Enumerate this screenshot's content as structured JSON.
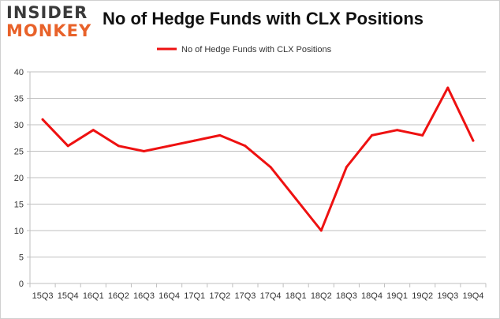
{
  "logo": {
    "line1": "INSIDER",
    "line2": "MONKEY"
  },
  "chart_data": {
    "type": "line",
    "title": "No of Hedge Funds with CLX Positions",
    "xlabel": "",
    "ylabel": "",
    "categories": [
      "15Q3",
      "15Q4",
      "16Q1",
      "16Q2",
      "16Q3",
      "16Q4",
      "17Q1",
      "17Q2",
      "17Q3",
      "17Q4",
      "18Q1",
      "18Q2",
      "18Q3",
      "18Q4",
      "19Q1",
      "19Q2",
      "19Q3",
      "19Q4"
    ],
    "series": [
      {
        "name": "No of Hedge Funds with CLX Positions",
        "values": [
          31,
          26,
          29,
          26,
          25,
          26,
          27,
          28,
          26,
          22,
          16,
          10,
          22,
          28,
          29,
          28,
          37,
          27
        ],
        "color": "#ee1111"
      }
    ],
    "ylim": [
      0,
      40
    ],
    "yticks": [
      0,
      5,
      10,
      15,
      20,
      25,
      30,
      35,
      40
    ],
    "grid": true,
    "legend_position": "top-center"
  },
  "colors": {
    "grid": "#bfbfbf",
    "axis_text": "#333333",
    "logo_dark": "#3a3a3a",
    "logo_accent": "#e8622a"
  }
}
